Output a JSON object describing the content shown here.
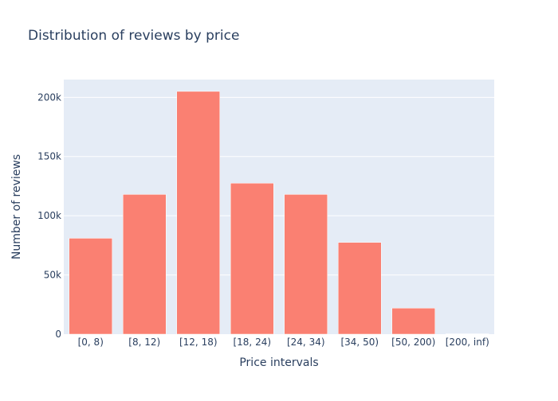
{
  "chart_data": {
    "type": "bar",
    "title": "Distribution of reviews by price",
    "xlabel": "Price intervals",
    "ylabel": "Number of reviews",
    "categories": [
      "[0, 8)",
      "[8, 12)",
      "[12, 18)",
      "[18, 24)",
      "[24, 34)",
      "[34, 50)",
      "[50, 200)",
      "[200, inf)"
    ],
    "values": [
      81000,
      118000,
      205000,
      127500,
      118000,
      77500,
      22000,
      300
    ],
    "ylim": [
      0,
      215000
    ],
    "yticks": [
      0,
      50000,
      100000,
      150000,
      200000
    ],
    "ytick_labels": [
      "0",
      "50k",
      "100k",
      "150k",
      "200k"
    ],
    "grid": true,
    "colors": {
      "bar": "#fa8072",
      "plot_background": "#e5ecf6",
      "grid": "#ffffff",
      "text": "#2a3f5f"
    }
  }
}
